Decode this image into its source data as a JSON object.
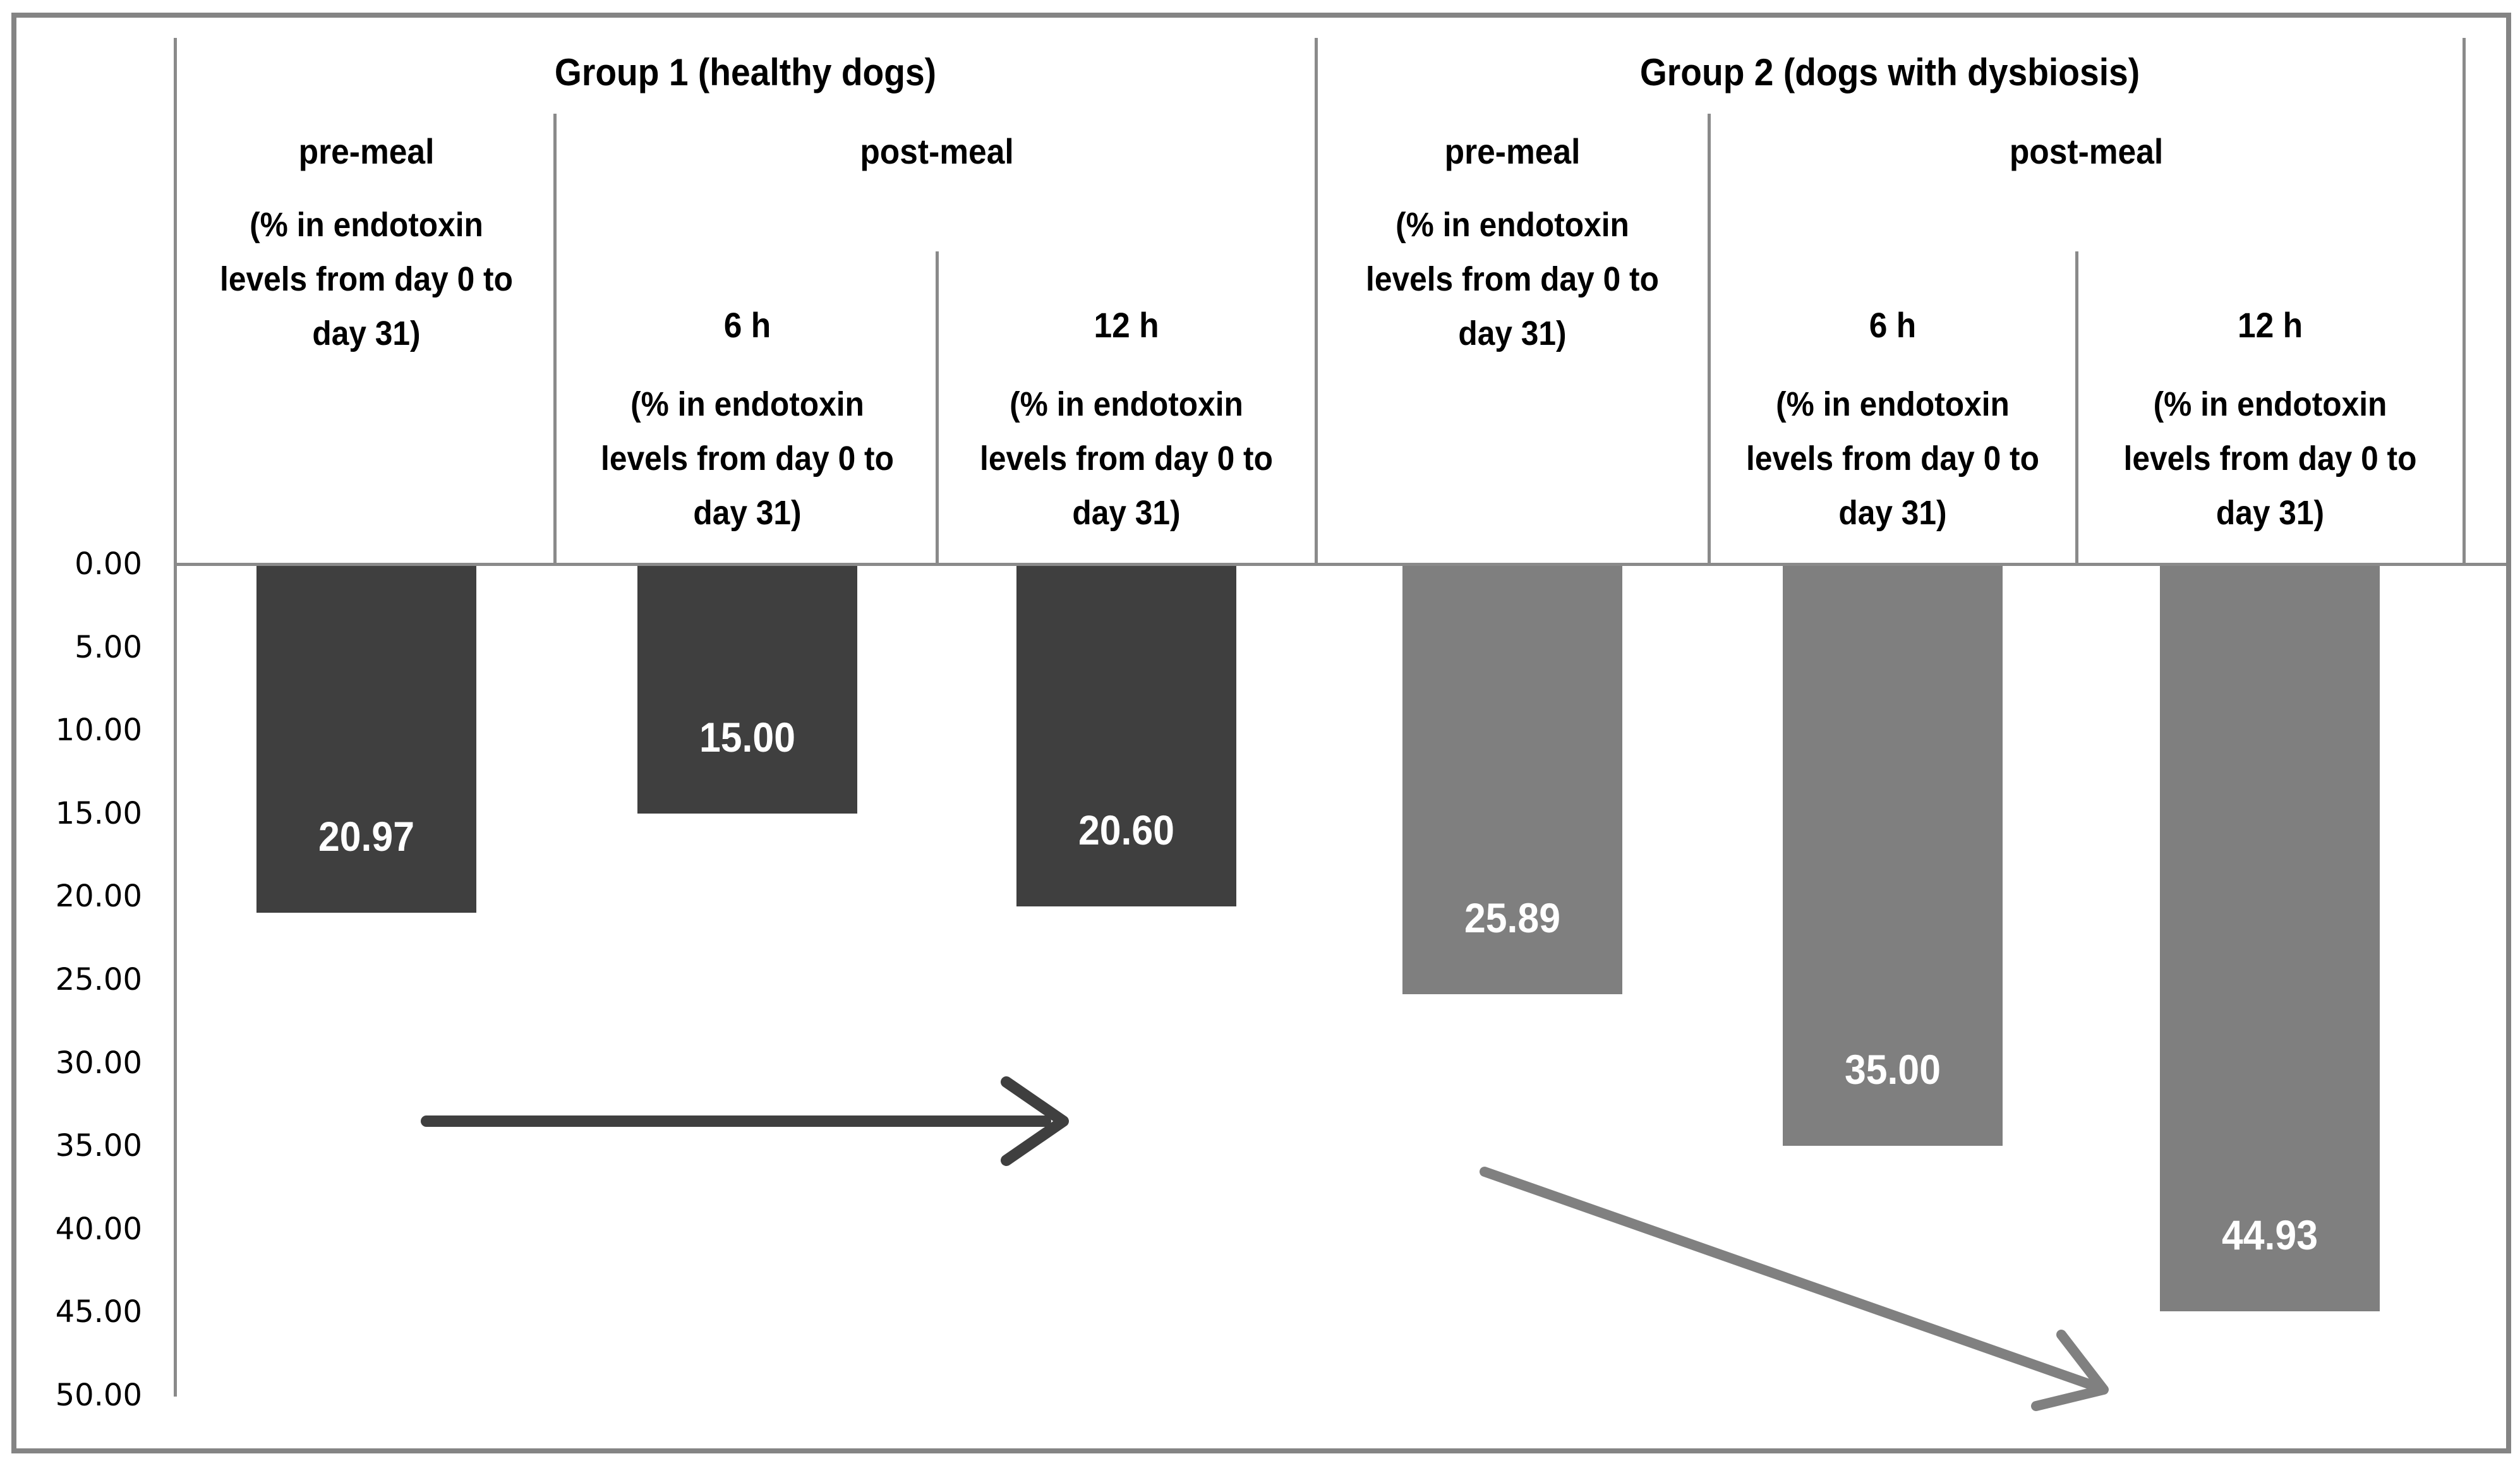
{
  "chart": {
    "group1_title": "Group 1 (healthy dogs)",
    "group2_title": "Group 2 (dogs with dysbiosis)",
    "premeal_label": "pre-meal",
    "postmeal_label": "post-meal",
    "time_6h": "6 h",
    "time_12h": "12 h",
    "desc_lines": [
      "(% in endotoxin",
      "levels from day 0 to",
      "day 31)"
    ],
    "y_axis_labels": [
      "0.00",
      "5.00",
      "10.00",
      "15.00",
      "20.00",
      "25.00",
      "30.00",
      "35.00",
      "40.00",
      "45.00",
      "50.00"
    ],
    "bars": [
      {
        "label": "20.97",
        "value": 20.97,
        "group": "Group 1 (healthy dogs)",
        "category": "pre-meal",
        "color": "#3f3f3f"
      },
      {
        "label": "15.00",
        "value": 15.0,
        "group": "Group 1 (healthy dogs)",
        "category": "post-meal 6 h",
        "color": "#3f3f3f"
      },
      {
        "label": "20.60",
        "value": 20.6,
        "group": "Group 1 (healthy dogs)",
        "category": "post-meal 12 h",
        "color": "#3f3f3f"
      },
      {
        "label": "25.89",
        "value": 25.89,
        "group": "Group 2 (dogs with dysbiosis)",
        "category": "pre-meal",
        "color": "#7f7f7f"
      },
      {
        "label": "35.00",
        "value": 35.0,
        "group": "Group 2 (dogs with dysbiosis)",
        "category": "post-meal 6 h",
        "color": "#7f7f7f"
      },
      {
        "label": "44.93",
        "value": 44.93,
        "group": "Group 2 (dogs with dysbiosis)",
        "category": "post-meal 12 h",
        "color": "#7f7f7f"
      }
    ],
    "colors": {
      "group1_bar": "#3f3f3f",
      "group2_bar": "#7f7f7f",
      "line": "#8a8a8a",
      "border": "#848484",
      "arrow_dark": "#3f3f3f",
      "arrow_gray": "#808080",
      "bar_label_text": "#ffffff",
      "text": "#000000"
    }
  },
  "chart_data": {
    "type": "bar",
    "orientation": "vertical-downward",
    "title": "",
    "xlabel": "",
    "ylabel": "",
    "ylim": [
      0,
      50
    ],
    "y_tick_interval": 5,
    "y_tick_labels": [
      "0.00",
      "5.00",
      "10.00",
      "15.00",
      "20.00",
      "25.00",
      "30.00",
      "35.00",
      "40.00",
      "45.00",
      "50.00"
    ],
    "grid": false,
    "legend_position": "none",
    "groups": [
      {
        "name": "Group 1 (healthy dogs)",
        "bar_color": "#3f3f3f",
        "categories": [
          "pre-meal (% in endotoxin levels from day 0 to day 31)",
          "post-meal 6 h (% in endotoxin levels from day 0 to day 31)",
          "post-meal 12 h (% in endotoxin levels from day 0 to day 31)"
        ],
        "values": [
          20.97,
          15.0,
          20.6
        ],
        "data_labels": [
          "20.97",
          "15.00",
          "20.60"
        ]
      },
      {
        "name": "Group 2 (dogs with dysbiosis)",
        "bar_color": "#7f7f7f",
        "categories": [
          "pre-meal (% in endotoxin levels from day 0 to day 31)",
          "post-meal 6 h (% in endotoxin levels from day 0 to day 31)",
          "post-meal 12 h (% in endotoxin levels from day 0 to day 31)"
        ],
        "values": [
          25.89,
          35.0,
          44.93
        ],
        "data_labels": [
          "25.89",
          "35.00",
          "44.93"
        ]
      }
    ],
    "annotations": [
      "horizontal dark gray arrow pointing right, drawn under the Group 1 bars",
      "diagonal gray arrow pointing down-right, drawn under the Group 2 bars"
    ]
  }
}
